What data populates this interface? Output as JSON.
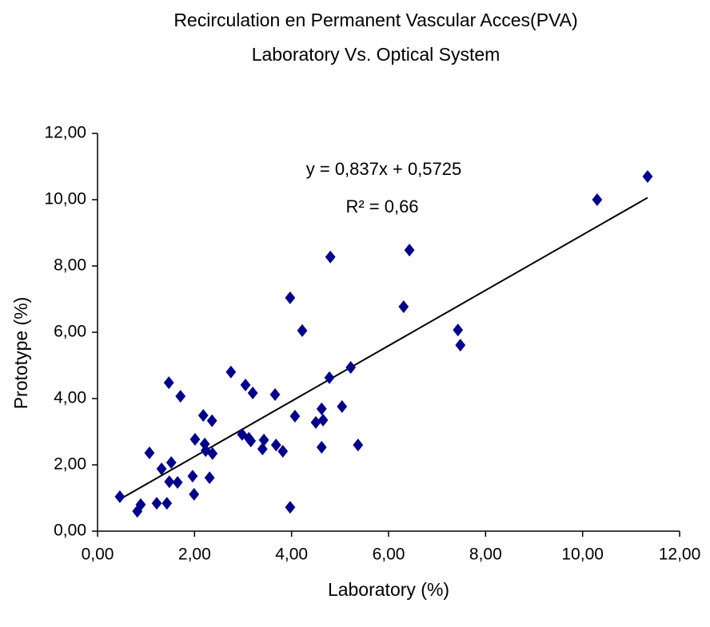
{
  "chart_data": {
    "type": "scatter",
    "title": "Recirculation en Permanent Vascular Acces(PVA)",
    "subtitle": "Laboratory Vs. Optical System",
    "x_label": "Laboratory (%)",
    "y_label": "Prototype (%)",
    "annotations": [
      "y = 0,837x + 0,5725",
      "R² = 0,66"
    ],
    "color": "#00008b",
    "x": [
      0.46,
      0.82,
      0.89,
      1.07,
      1.22,
      1.32,
      1.43,
      1.47,
      1.48,
      1.52,
      1.65,
      1.71,
      1.96,
      1.99,
      2.01,
      2.18,
      2.21,
      2.23,
      2.31,
      2.36,
      2.37,
      2.75,
      2.98,
      3.05,
      3.12,
      3.16,
      3.2,
      3.4,
      3.43,
      3.66,
      3.68,
      3.82,
      3.97,
      3.97,
      4.07,
      4.22,
      4.5,
      4.62,
      4.65,
      4.62,
      4.78,
      4.8,
      5.04,
      5.22,
      5.37,
      6.31,
      6.43,
      7.43,
      7.48,
      10.3,
      11.34
    ],
    "values": [
      1.04,
      0.6,
      0.8,
      2.36,
      0.84,
      1.88,
      0.84,
      4.48,
      1.49,
      2.07,
      1.47,
      4.07,
      1.66,
      1.11,
      2.77,
      3.49,
      2.63,
      2.43,
      1.61,
      3.33,
      2.34,
      4.8,
      2.92,
      4.41,
      2.8,
      2.72,
      4.17,
      2.48,
      2.75,
      4.12,
      2.6,
      2.41,
      7.04,
      0.72,
      3.47,
      6.05,
      3.28,
      3.69,
      3.35,
      2.53,
      4.63,
      8.27,
      3.76,
      4.94,
      2.6,
      6.77,
      8.48,
      6.07,
      5.61,
      10.0,
      10.7
    ],
    "trendline": {
      "x": [
        0.47,
        11.34
      ],
      "y": [
        0.97,
        10.06
      ],
      "color": "#000000"
    },
    "xlim": [
      0,
      12
    ],
    "ylim": [
      0,
      12
    ],
    "xticks": [
      {
        "value": 0,
        "label": "0,00"
      },
      {
        "value": 2,
        "label": "2,00"
      },
      {
        "value": 4,
        "label": "4,00"
      },
      {
        "value": 6,
        "label": "6,00"
      },
      {
        "value": 8,
        "label": "8,00"
      },
      {
        "value": 10,
        "label": "10,00"
      },
      {
        "value": 12,
        "label": "12,00"
      }
    ],
    "yticks": [
      {
        "value": 0,
        "label": "0,00"
      },
      {
        "value": 2,
        "label": "2,00"
      },
      {
        "value": 4,
        "label": "4,00"
      },
      {
        "value": 6,
        "label": "6,00"
      },
      {
        "value": 8,
        "label": "8,00"
      },
      {
        "value": 10,
        "label": "10,00"
      },
      {
        "value": 12,
        "label": "12,00"
      }
    ],
    "grid": false
  }
}
